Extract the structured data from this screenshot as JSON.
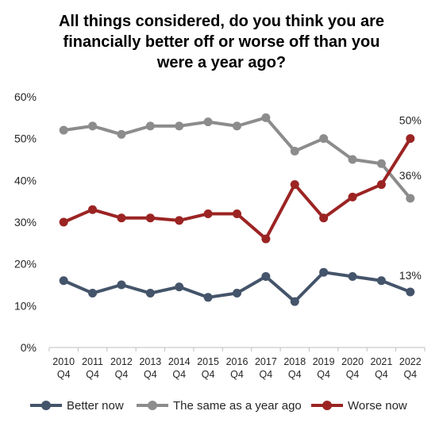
{
  "title_lines": [
    "All things considered, do you think you are",
    "financially better off or worse off than you",
    "were a year ago?"
  ],
  "chart_data": {
    "type": "line",
    "categories": [
      [
        "2010",
        "Q4"
      ],
      [
        "2011",
        "Q4"
      ],
      [
        "2012",
        "Q4"
      ],
      [
        "2013",
        "Q4"
      ],
      [
        "2014",
        "Q4"
      ],
      [
        "2015",
        "Q4"
      ],
      [
        "2016",
        "Q4"
      ],
      [
        "2017",
        "Q4"
      ],
      [
        "2018",
        "Q4"
      ],
      [
        "2019",
        "Q4"
      ],
      [
        "2020",
        "Q4"
      ],
      [
        "2021",
        "Q4"
      ],
      [
        "2022",
        "Q4"
      ]
    ],
    "ylim": [
      0,
      60
    ],
    "yticks": [
      "0%",
      "10%",
      "20%",
      "30%",
      "40%",
      "50%",
      "60%"
    ],
    "series": [
      {
        "name": "Better now",
        "color": "#44546a",
        "values": [
          16,
          13,
          15,
          13,
          14.5,
          12,
          13,
          17,
          11,
          18,
          17,
          16,
          13.3
        ],
        "end_label": "13%"
      },
      {
        "name": "The same as a year ago",
        "color": "#8c8c8c",
        "values": [
          52,
          53,
          51,
          53,
          53,
          54,
          53,
          55,
          47,
          50,
          45,
          44,
          35.7
        ],
        "end_label": "36%"
      },
      {
        "name": "Worse now",
        "color": "#9b2423",
        "values": [
          30,
          33,
          31,
          31,
          30.4,
          32,
          32,
          26,
          39,
          31,
          36,
          39,
          50
        ],
        "end_label": "50%"
      }
    ],
    "grid": false,
    "legend_position": "bottom"
  }
}
